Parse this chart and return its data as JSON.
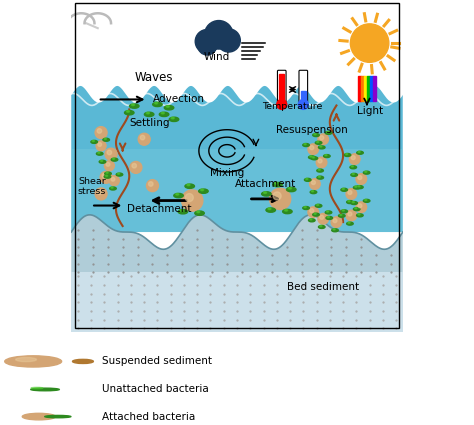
{
  "fig_width": 4.74,
  "fig_height": 4.25,
  "dpi": 100,
  "bg_color": "#ffffff",
  "water_color": "#5ab8d5",
  "water_color_light": "#7ecde0",
  "bed_dot_color": "#aaaaaa",
  "bed_color": "#b0cdd8",
  "bed_light_color": "#cce0ea",
  "sun_color": "#f5a623",
  "cloud_color": "#1a3a5c",
  "brown": "#9e4a1e",
  "sediment_color": "#d4a574",
  "sediment_dark": "#b07830",
  "bacteria_color": "#2d8a1f",
  "bacteria_light": "#50cc30",
  "labels": {
    "waves": "Waves",
    "wind": "Wind",
    "advection": "Advection",
    "temperature": "Temperature",
    "light": "Light",
    "mixing": "Mixing",
    "settling": "Settling",
    "resuspension": "Resuspension",
    "shear_stress": "Shear\nstress",
    "detachment": "Detachment",
    "attachment": "Attachment",
    "bed_sediment": "Bed sediment",
    "leg_suspended": "Suspended sediment",
    "leg_unattached": "Unattached bacteria",
    "leg_attached": "Attached bacteria"
  },
  "wave_params": {
    "base": 0.72,
    "amp": 0.025,
    "freq": 18
  },
  "bed_params": {
    "base": 0.3,
    "amp": 0.04,
    "freq": 6,
    "amp2": 0.02,
    "freq2": 12
  }
}
